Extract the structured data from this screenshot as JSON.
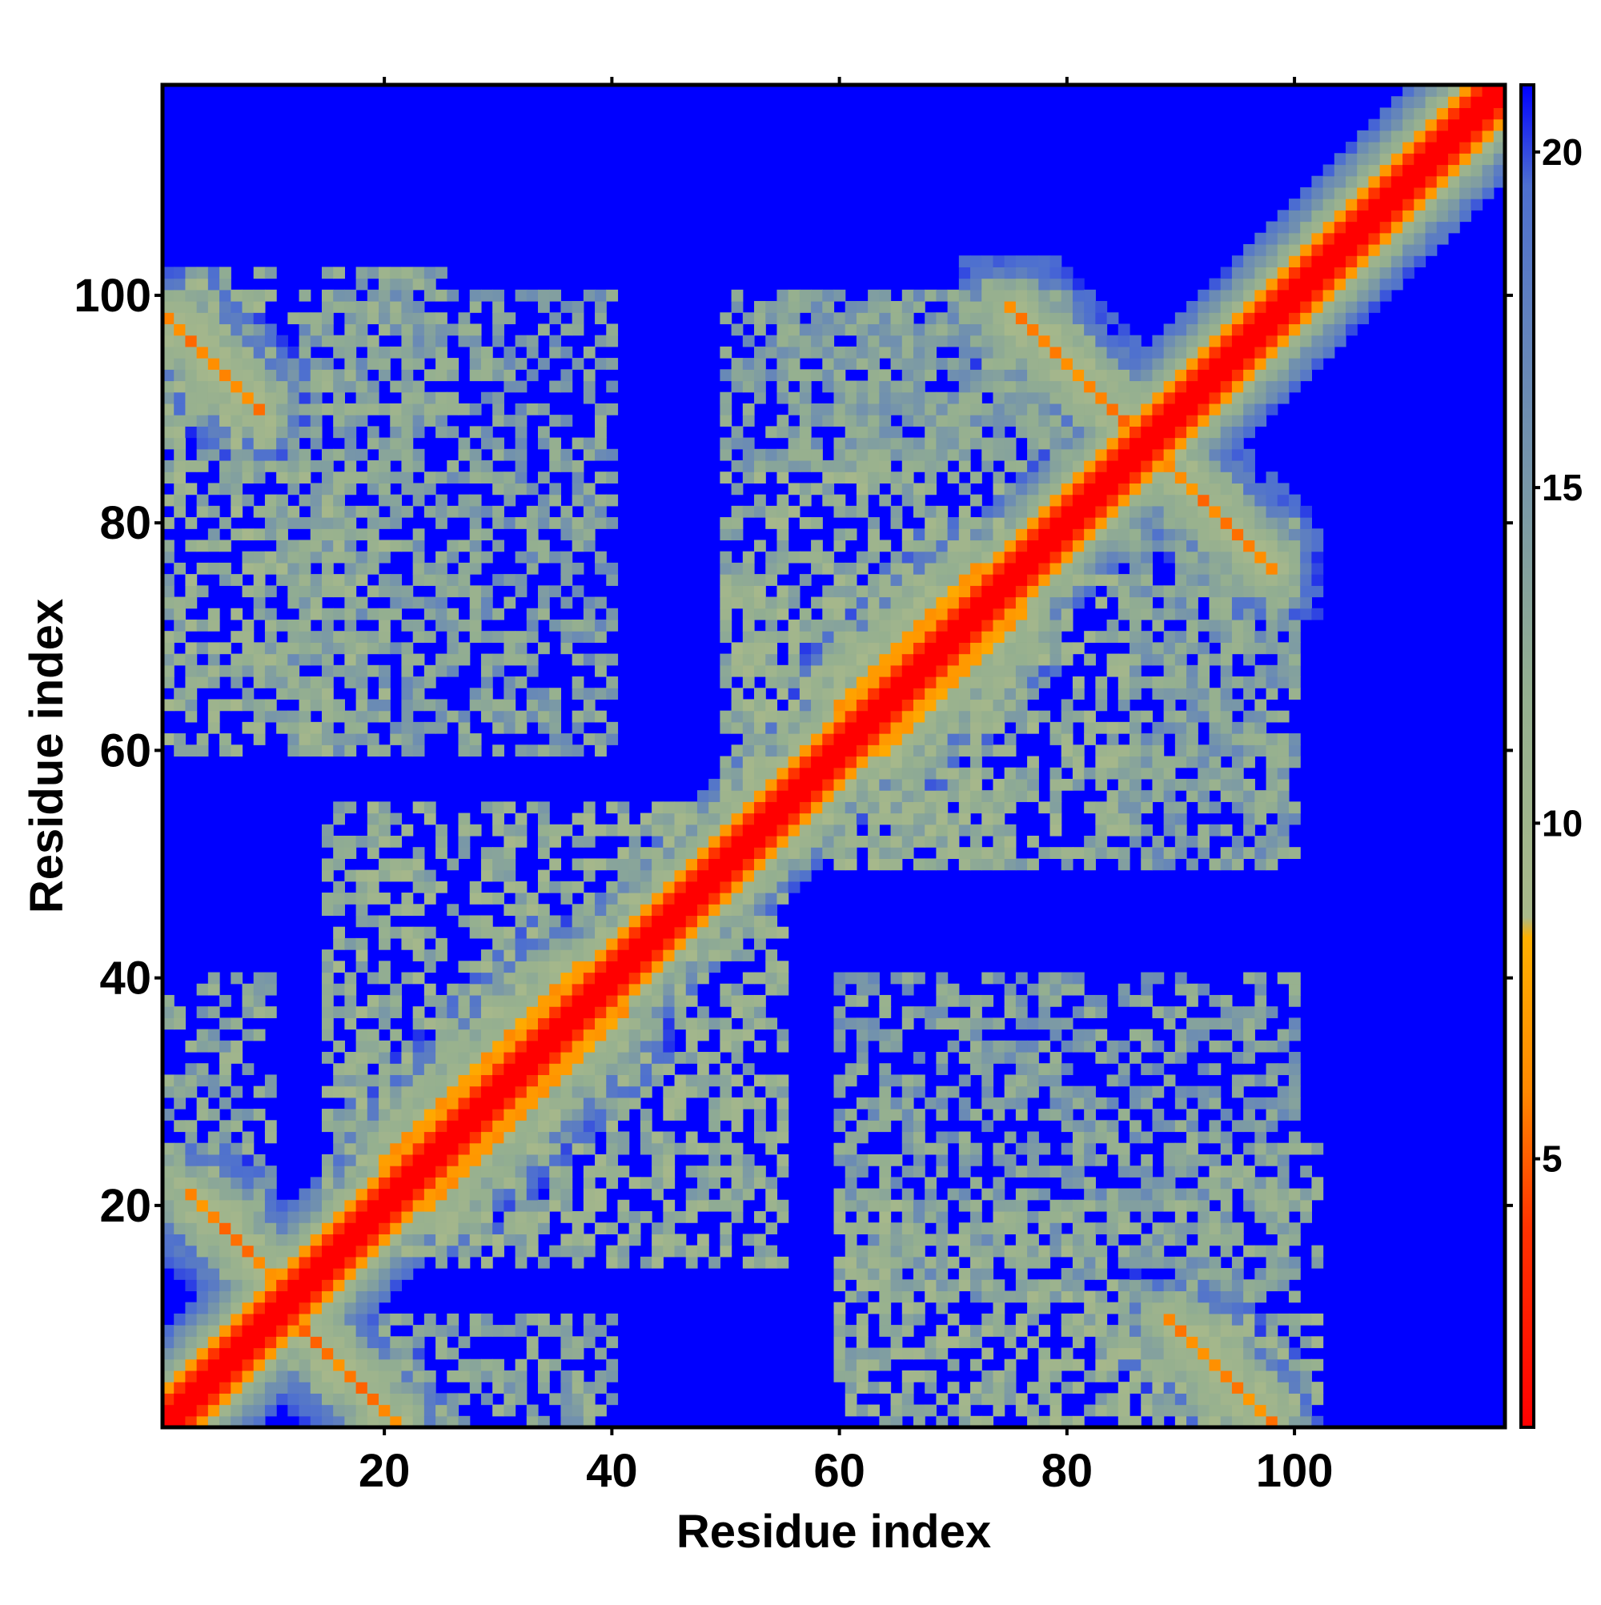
{
  "chart_data": {
    "type": "heatmap",
    "title": "",
    "xlabel": "Residue index",
    "ylabel": "Residue index",
    "n_residues": 118,
    "xlim": [
      0.5,
      118.5
    ],
    "ylim": [
      0.5,
      118.5
    ],
    "x_ticks": [
      {
        "value": 20,
        "label": "20"
      },
      {
        "value": 40,
        "label": "40"
      },
      {
        "value": 60,
        "label": "60"
      },
      {
        "value": 80,
        "label": "80"
      },
      {
        "value": 100,
        "label": "100"
      }
    ],
    "y_ticks": [
      {
        "value": 20,
        "label": "20"
      },
      {
        "value": 40,
        "label": "40"
      },
      {
        "value": 60,
        "label": "60"
      },
      {
        "value": 80,
        "label": "80"
      },
      {
        "value": 100,
        "label": "100"
      }
    ],
    "colorbar": {
      "range": [
        1,
        21
      ],
      "ticks": [
        {
          "value": 5,
          "label": "5"
        },
        {
          "value": 10,
          "label": "10"
        },
        {
          "value": 15,
          "label": "15"
        },
        {
          "value": 20,
          "label": "20"
        }
      ],
      "color_stops": [
        {
          "value": 1,
          "color": "#ff0000"
        },
        {
          "value": 4,
          "color": "#ff3300"
        },
        {
          "value": 6,
          "color": "#ff8800"
        },
        {
          "value": 8.3,
          "color": "#ffb000"
        },
        {
          "value": 8.6,
          "color": "#a9b98a"
        },
        {
          "value": 12,
          "color": "#94af90"
        },
        {
          "value": 16,
          "color": "#6f8fb0"
        },
        {
          "value": 19.5,
          "color": "#4d6fd0"
        },
        {
          "value": 21,
          "color": "#0000ff"
        }
      ]
    },
    "grid": false,
    "legend": "colorbar at right",
    "cell_values_description": "distance map, values capped at 21 (blue background)",
    "structures": {
      "main_diagonal": {
        "value": 1
      },
      "antiparallel_bands": [
        {
          "x_start": 1,
          "y_start": 98,
          "x_end": 9,
          "y_end": 90,
          "value": 5
        },
        {
          "x_start": 3,
          "y_start": 21,
          "x_end": 13,
          "y_end": 11,
          "value": 5
        },
        {
          "x_start": 11,
          "y_start": 11,
          "x_end": 21,
          "y_end": 1,
          "value": 5
        },
        {
          "x_start": 75,
          "y_start": 99,
          "x_end": 87,
          "y_end": 87,
          "value": 5
        },
        {
          "x_start": 87,
          "y_start": 87,
          "x_end": 98,
          "y_end": 76,
          "value": 5
        },
        {
          "x_start": 89,
          "y_start": 10,
          "x_end": 98,
          "y_end": 1,
          "value": 5
        }
      ],
      "parallel_bands": [
        {
          "x_start": 20,
          "y_start": 24,
          "x_end": 37,
          "y_end": 41,
          "value": 6
        },
        {
          "x_start": 24,
          "y_start": 20,
          "x_end": 41,
          "y_end": 37,
          "value": 6
        },
        {
          "x_start": 60,
          "y_start": 64,
          "x_end": 72,
          "y_end": 76,
          "value": 6
        },
        {
          "x_start": 64,
          "y_start": 60,
          "x_end": 76,
          "y_end": 72,
          "value": 6
        }
      ],
      "contact_regions": [
        {
          "x": [
            1,
            10
          ],
          "y": [
            85,
            102
          ],
          "value": 12
        },
        {
          "x": [
            85,
            102
          ],
          "y": [
            1,
            10
          ],
          "value": 12
        },
        {
          "x": [
            1,
            20
          ],
          "y": [
            60,
            85
          ],
          "value": 12
        },
        {
          "x": [
            60,
            85
          ],
          "y": [
            1,
            20
          ],
          "value": 12
        },
        {
          "x": [
            12,
            40
          ],
          "y": [
            60,
            100
          ],
          "value": 14
        },
        {
          "x": [
            60,
            100
          ],
          "y": [
            12,
            40
          ],
          "value": 14
        },
        {
          "x": [
            1,
            10
          ],
          "y": [
            20,
            40
          ],
          "value": 13
        },
        {
          "x": [
            20,
            40
          ],
          "y": [
            1,
            10
          ],
          "value": 13
        },
        {
          "x": [
            50,
            80
          ],
          "y": [
            85,
            100
          ],
          "value": 14
        },
        {
          "x": [
            85,
            100
          ],
          "y": [
            50,
            80
          ],
          "value": 14
        },
        {
          "x": [
            50,
            75
          ],
          "y": [
            50,
            85
          ],
          "value": 12
        },
        {
          "x": [
            50,
            85
          ],
          "y": [
            50,
            75
          ],
          "value": 12
        },
        {
          "x": [
            15,
            55
          ],
          "y": [
            15,
            55
          ],
          "value": 12
        },
        {
          "x": [
            85,
            100
          ],
          "y": [
            55,
            80
          ],
          "value": 14
        },
        {
          "x": [
            55,
            80
          ],
          "y": [
            85,
            100
          ],
          "value": 14
        },
        {
          "x": [
            90,
            102
          ],
          "y": [
            15,
            25
          ],
          "value": 13
        },
        {
          "x": [
            15,
            25
          ],
          "y": [
            90,
            102
          ],
          "value": 13
        }
      ]
    }
  }
}
